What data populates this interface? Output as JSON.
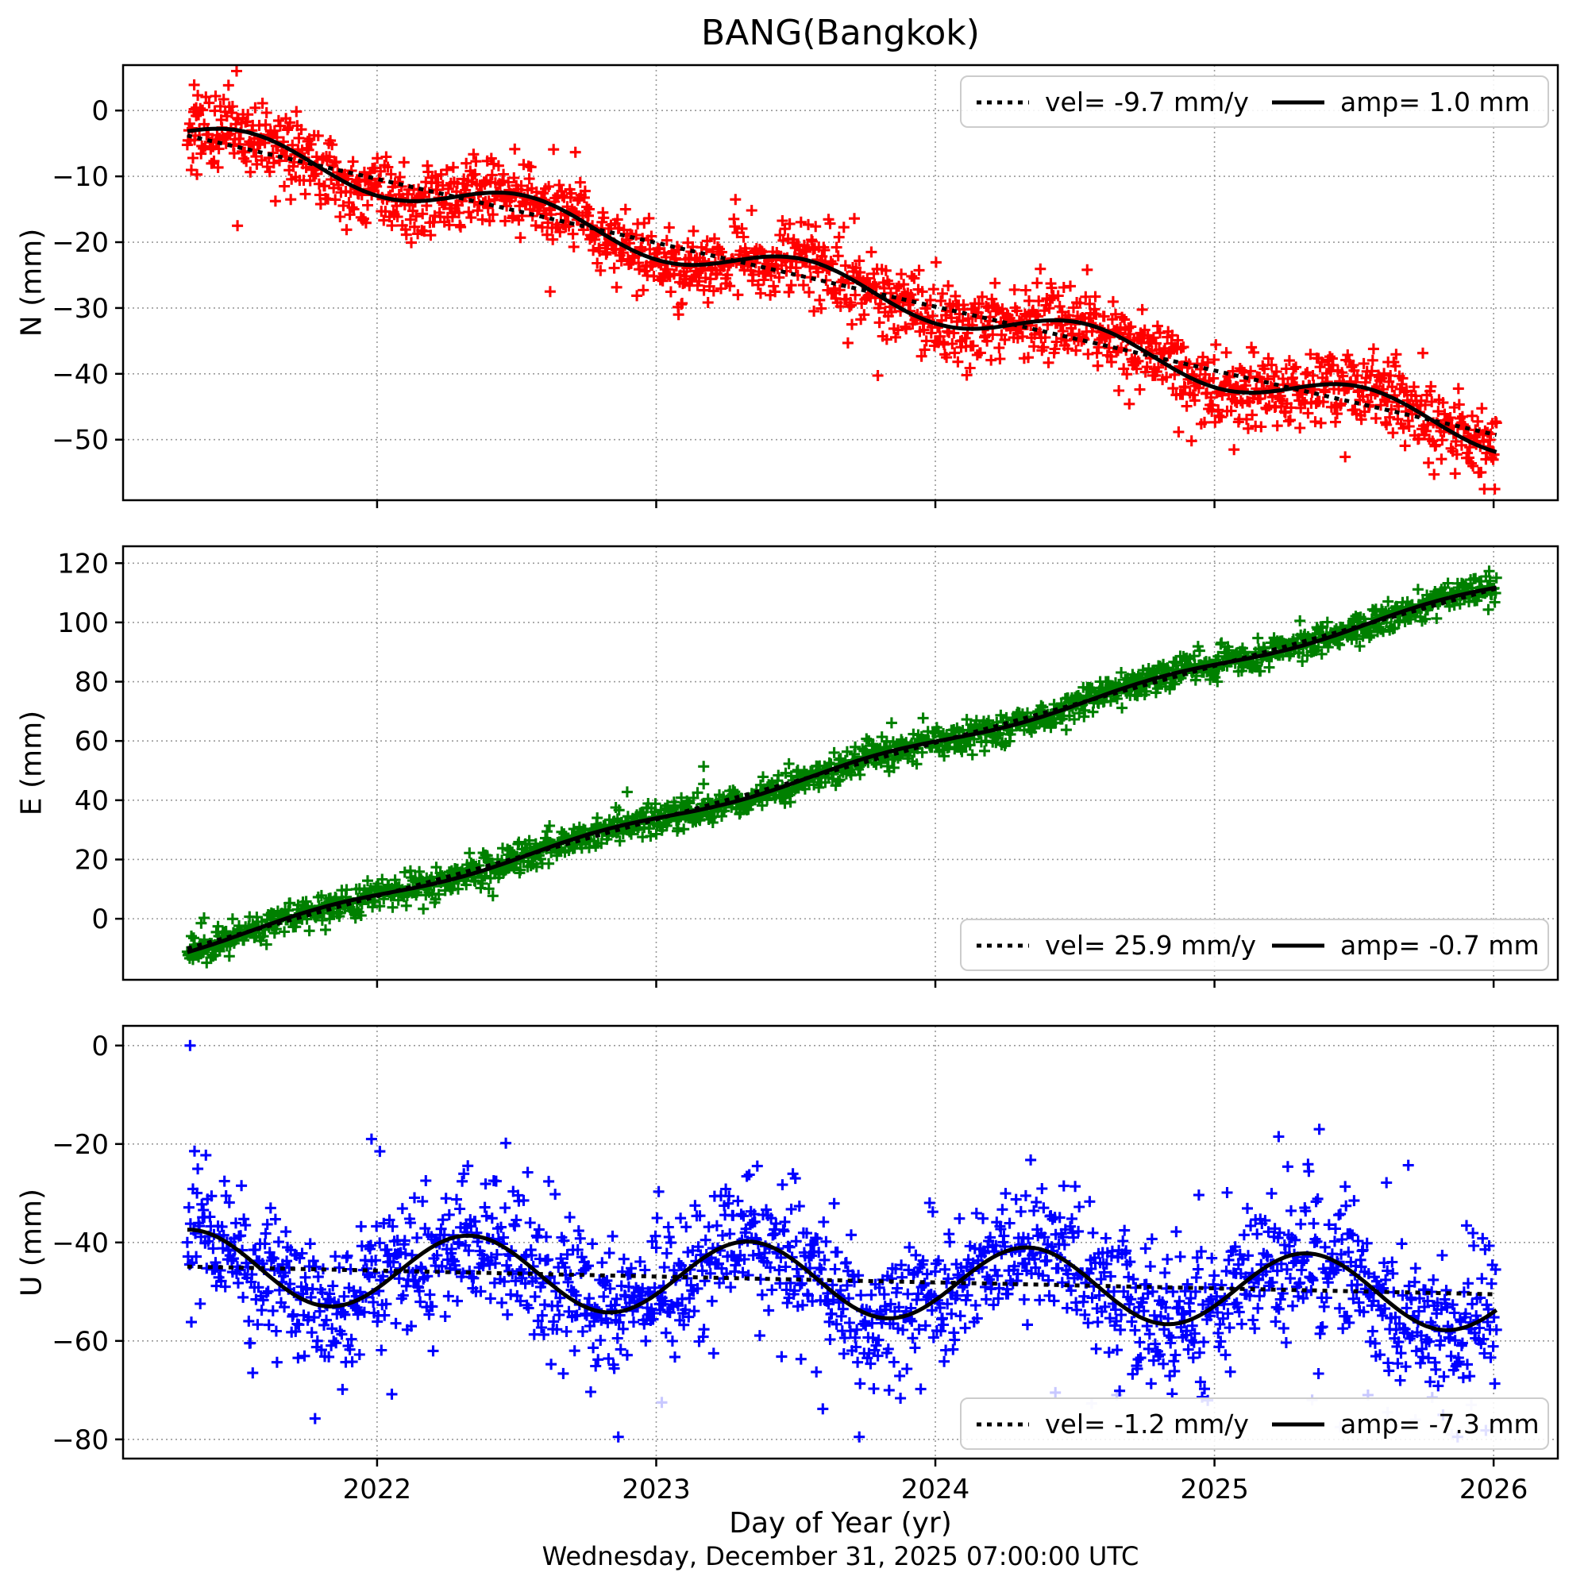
{
  "title": "BANG(Bangkok)",
  "station": "BANG",
  "station_name": "Bangkok",
  "footer": "Wednesday, December 31, 2025 07:00:00 UTC",
  "x_axis": {
    "label": "Day of Year (yr)",
    "ticks": [
      2022,
      2023,
      2024,
      2025,
      2026
    ],
    "range": [
      2021.09,
      2026.23
    ]
  },
  "grid": {
    "on": true,
    "style": "dotted",
    "color": "#999999"
  },
  "fit_line_color": "#000000",
  "chart_data": [
    {
      "type": "scatter",
      "component": "N",
      "ylabel": "N (mm)",
      "marker": "+",
      "color": "#ff0000",
      "ylim": [
        -59.2,
        6.9
      ],
      "yticks": [
        0,
        -10,
        -20,
        -30,
        -40,
        -50
      ],
      "velocity_mm_per_yr": -9.7,
      "seasonal_amp_mm": 1.0,
      "legend": {
        "position": "top-right",
        "entries": [
          {
            "style": "dotted",
            "label": "vel= -9.7 mm/y"
          },
          {
            "style": "solid",
            "label": "amp= 1.0 mm"
          }
        ]
      },
      "fit": {
        "t0": 2021.32,
        "t1": 2026.01,
        "value_at_t0": -3.8,
        "slope": -9.7,
        "wave_amp": 2.6,
        "wave_phase": 0.28
      },
      "scatter_sim": {
        "n": 1620,
        "sigma": 2.9,
        "seed": 101,
        "tail_frac": 0.015,
        "tail_sigma": 6,
        "clamp": [
          -57.5,
          6.0
        ]
      },
      "outliers": [
        [
          2021.345,
          3.9
        ],
        [
          2021.345,
          0.2
        ],
        [
          2021.352,
          -0.8
        ],
        [
          2021.5,
          -17.5
        ],
        [
          2022.62,
          -27.5
        ],
        [
          2023.08,
          -31.0
        ],
        [
          2024.04,
          -37.5
        ],
        [
          2025.07,
          -51.5
        ]
      ],
      "excluded_points": [],
      "excluded_color": "#ffc8c8"
    },
    {
      "type": "scatter",
      "component": "E",
      "ylabel": "E (mm)",
      "marker": "+",
      "color": "#008000",
      "ylim": [
        -20.6,
        125.7
      ],
      "yticks": [
        120,
        100,
        80,
        60,
        40,
        20,
        0
      ],
      "velocity_mm_per_yr": 25.9,
      "seasonal_amp_mm": -0.7,
      "legend": {
        "position": "bottom-right",
        "entries": [
          {
            "style": "dotted",
            "label": "vel= 25.9 mm/y"
          },
          {
            "style": "solid",
            "label": "amp= -0.7 mm"
          }
        ]
      },
      "fit": {
        "t0": 2021.32,
        "t1": 2026.01,
        "value_at_t0": -10.0,
        "slope": 25.9,
        "wave_amp": 1.3,
        "wave_phase": 0.55
      },
      "scatter_sim": {
        "n": 1620,
        "sigma": 2.6,
        "seed": 202,
        "tail_frac": 0.015,
        "tail_sigma": 5,
        "clamp": [
          -19.0,
          124.0
        ]
      },
      "outliers": [
        [
          2021.37,
          -1.5
        ],
        [
          2021.38,
          0.3
        ],
        [
          2023.17,
          51.4
        ],
        [
          2023.17,
          45.5
        ]
      ],
      "excluded_points": [],
      "excluded_color": "#c8e6c8"
    },
    {
      "type": "scatter",
      "component": "U",
      "ylabel": "U (mm)",
      "marker": "+",
      "color": "#0000ff",
      "ylim": [
        -83.9,
        4.0
      ],
      "yticks": [
        0,
        -20,
        -40,
        -60,
        -80
      ],
      "velocity_mm_per_yr": -1.2,
      "seasonal_amp_mm": -7.3,
      "legend": {
        "position": "bottom-right",
        "entries": [
          {
            "style": "dotted",
            "label": "vel= -1.2 mm/y"
          },
          {
            "style": "solid",
            "label": "amp= -7.3 mm"
          }
        ]
      },
      "fit": {
        "t0": 2021.32,
        "t1": 2026.01,
        "value_at_t0": -44.9,
        "slope": -1.2,
        "wave_amp": 7.5,
        "wave_phase": 0.08
      },
      "scatter_sim": {
        "n": 1620,
        "sigma": 6.8,
        "seed": 303,
        "tail_frac": 0.1,
        "tail_sigma": 12,
        "clamp": [
          -79.5,
          -17.0
        ]
      },
      "outliers": [
        [
          2021.33,
          0.0
        ],
        [
          2021.98,
          -19.0
        ],
        [
          2022.01,
          -21.5
        ],
        [
          2025.23,
          -18.5
        ]
      ],
      "excluded_points": [
        [
          2023.02,
          -72.5
        ],
        [
          2024.43,
          -70.5
        ],
        [
          2024.56,
          -72.7
        ],
        [
          2024.65,
          -71.0
        ],
        [
          2025.35,
          -72.0
        ],
        [
          2025.45,
          -77.5
        ],
        [
          2025.55,
          -71.0
        ],
        [
          2025.62,
          -74.5
        ],
        [
          2025.72,
          -76.0
        ],
        [
          2025.78,
          -71.5
        ],
        [
          2025.85,
          -79.0
        ],
        [
          2025.92,
          -73.0
        ]
      ],
      "excluded_color": "#c8c8ff"
    }
  ]
}
